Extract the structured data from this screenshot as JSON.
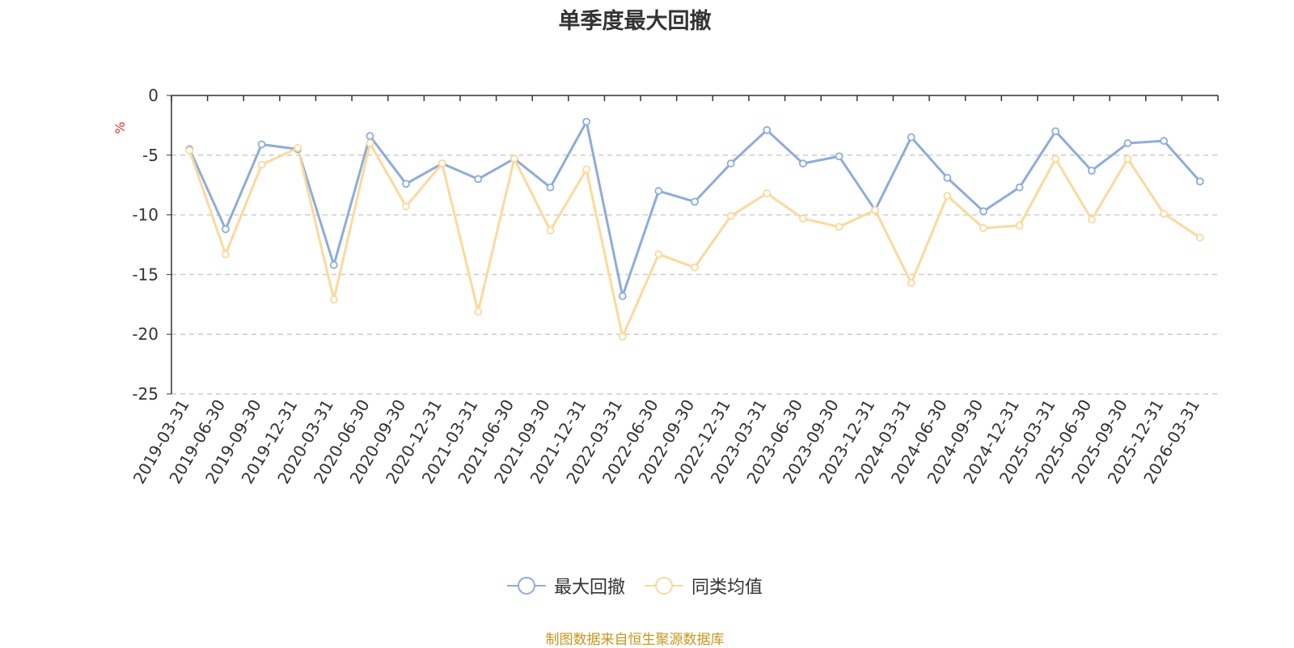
{
  "chart_data": {
    "type": "line",
    "title": "单季度最大回撤",
    "ylabel": "%",
    "ylim": [
      -25,
      0
    ],
    "yticks": [
      0,
      -5,
      -10,
      -15,
      -20,
      -25
    ],
    "categories": [
      "2019-03-31",
      "2019-06-30",
      "2019-09-30",
      "2019-12-31",
      "2020-03-31",
      "2020-06-30",
      "2020-09-30",
      "2020-12-31",
      "2021-03-31",
      "2021-06-30",
      "2021-09-30",
      "2021-12-31",
      "2022-03-31",
      "2022-06-30",
      "2022-09-30",
      "2022-12-31",
      "2023-03-31",
      "2023-06-30",
      "2023-09-30",
      "2023-12-31",
      "2024-03-31",
      "2024-06-30",
      "2024-09-30",
      "2024-12-31",
      "2025-03-31",
      "2025-06-30",
      "2025-09-30",
      "2025-12-31",
      "2026-03-31"
    ],
    "series": [
      {
        "name": "最大回撤",
        "color": "#8eacd9",
        "values": [
          -4.5,
          -11.2,
          -4.1,
          -4.5,
          -14.2,
          -3.4,
          -7.4,
          -5.7,
          -7.0,
          -5.3,
          -7.7,
          -2.2,
          -16.8,
          -8.0,
          -8.9,
          -5.7,
          -2.9,
          -5.7,
          -5.1,
          -9.6,
          -3.5,
          -6.9,
          -9.7,
          -7.7,
          -3.0,
          -6.3,
          -4.0,
          -3.8,
          -7.2
        ]
      },
      {
        "name": "同类均值",
        "color": "#fcd99b",
        "values": [
          -4.6,
          -13.3,
          -5.8,
          -4.4,
          -17.1,
          -4.0,
          -9.3,
          -5.7,
          -18.1,
          -5.3,
          -11.3,
          -6.2,
          -20.2,
          -13.3,
          -14.4,
          -10.1,
          -8.2,
          -10.3,
          -11.0,
          -9.6,
          -15.7,
          -8.4,
          -11.1,
          -10.9,
          -5.3,
          -10.4,
          -5.3,
          -9.9,
          -11.9
        ]
      }
    ],
    "grid": true,
    "legend_position": "bottom"
  },
  "footer": {
    "source": "制图数据来自恒生聚源数据库"
  }
}
